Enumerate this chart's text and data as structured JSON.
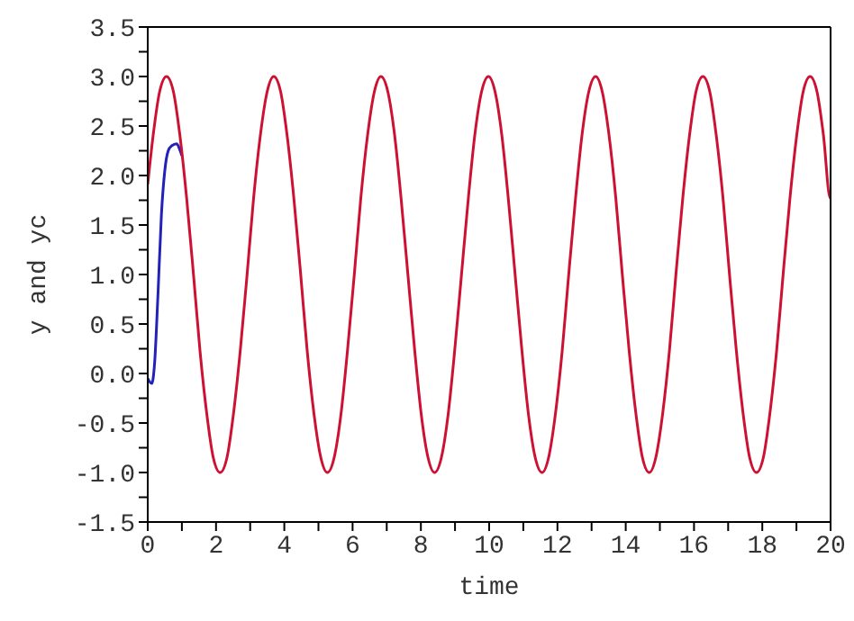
{
  "chart_data": {
    "type": "line",
    "xlabel": "time",
    "ylabel": "y and yc",
    "xlim": [
      0,
      20
    ],
    "ylim": [
      -1.5,
      3.5
    ],
    "xticks": [
      0,
      {
        "value": 1,
        "label": null
      },
      2,
      {
        "value": 3,
        "label": null
      },
      4,
      {
        "value": 5,
        "label": null
      },
      6,
      {
        "value": 7,
        "label": null
      },
      8,
      {
        "value": 9,
        "label": null
      },
      10,
      {
        "value": 11,
        "label": null
      },
      12,
      {
        "value": 13,
        "label": null
      },
      14,
      {
        "value": 15,
        "label": null
      },
      16,
      {
        "value": 17,
        "label": null
      },
      18,
      {
        "value": 19,
        "label": null
      },
      20
    ],
    "yticks": [
      {
        "value": -1.5,
        "label": "-1.5"
      },
      {
        "value": -1.25,
        "label": null
      },
      {
        "value": -1,
        "label": "-1.0"
      },
      {
        "value": -0.75,
        "label": null
      },
      {
        "value": -0.5,
        "label": "-0.5"
      },
      {
        "value": -0.25,
        "label": null
      },
      {
        "value": 0,
        "label": "0.0"
      },
      {
        "value": 0.25,
        "label": null
      },
      {
        "value": 0.5,
        "label": "0.5"
      },
      {
        "value": 0.75,
        "label": null
      },
      {
        "value": 1,
        "label": "1.0"
      },
      {
        "value": 1.25,
        "label": null
      },
      {
        "value": 1.5,
        "label": "1.5"
      },
      {
        "value": 1.75,
        "label": null
      },
      {
        "value": 2,
        "label": "2.0"
      },
      {
        "value": 2.25,
        "label": null
      },
      {
        "value": 2.5,
        "label": "2.5"
      },
      {
        "value": 2.75,
        "label": null
      },
      {
        "value": 3,
        "label": "3.0"
      },
      {
        "value": 3.25,
        "label": null
      },
      {
        "value": 3.5,
        "label": "3.5"
      }
    ],
    "legend": false,
    "marker": "none",
    "line_style": "solid",
    "series": [
      {
        "color": "#2222bb",
        "x": [
          0,
          0.05,
          0.12,
          0.2,
          0.3,
          0.4,
          0.5,
          0.6,
          0.7,
          0.85,
          0.95,
          1.0
        ],
        "values": [
          -0.05,
          -0.08,
          -0.1,
          0.1,
          0.8,
          1.6,
          2.05,
          2.25,
          2.3,
          2.32,
          2.25,
          2.2
        ]
      },
      {
        "color": "#cc1133",
        "x": [
          0,
          0.16,
          0.35,
          0.55,
          0.75,
          0.94,
          1.14,
          1.34,
          1.53,
          1.73,
          1.92,
          2.12,
          2.32,
          2.51,
          2.71,
          2.91,
          3.1,
          3.3,
          3.5,
          3.69,
          3.89,
          4.08,
          4.28,
          4.48,
          4.67,
          4.87,
          5.07,
          5.26,
          5.46,
          5.66,
          5.85,
          6.05,
          6.24,
          6.44,
          6.64,
          6.83,
          7.03,
          7.23,
          7.42,
          7.62,
          7.82,
          8.01,
          8.21,
          8.4,
          8.6,
          8.8,
          8.99,
          9.19,
          9.39,
          9.58,
          9.78,
          9.98,
          10.17,
          10.37,
          10.56,
          10.76,
          10.96,
          11.15,
          11.35,
          11.55,
          11.74,
          11.94,
          12.14,
          12.33,
          12.53,
          12.72,
          12.92,
          13.12,
          13.31,
          13.51,
          13.71,
          13.9,
          14.1,
          14.3,
          14.49,
          14.69,
          14.88,
          15.08,
          15.28,
          15.47,
          15.67,
          15.87,
          16.06,
          16.26,
          16.46,
          16.65,
          16.85,
          17.04,
          17.24,
          17.44,
          17.63,
          17.83,
          18.03,
          18.22,
          18.42,
          18.61,
          18.81,
          19.01,
          19.2,
          19.4,
          19.6,
          19.79,
          19.99,
          20
        ],
        "values": [
          1.91,
          2.41,
          2.85,
          3.0,
          2.85,
          2.41,
          1.77,
          1.0,
          0.23,
          -0.41,
          -0.85,
          -1.0,
          -0.85,
          -0.41,
          0.23,
          1.0,
          1.77,
          2.41,
          2.85,
          3.0,
          2.85,
          2.41,
          1.77,
          1.0,
          0.23,
          -0.41,
          -0.85,
          -1.0,
          -0.85,
          -0.41,
          0.23,
          1.0,
          1.77,
          2.41,
          2.85,
          3.0,
          2.85,
          2.41,
          1.77,
          1.0,
          0.23,
          -0.41,
          -0.85,
          -1.0,
          -0.85,
          -0.41,
          0.23,
          1.0,
          1.77,
          2.41,
          2.85,
          3.0,
          2.85,
          2.41,
          1.77,
          1.0,
          0.23,
          -0.41,
          -0.85,
          -1.0,
          -0.85,
          -0.41,
          0.23,
          1.0,
          1.77,
          2.41,
          2.85,
          3.0,
          2.85,
          2.41,
          1.77,
          1.0,
          0.23,
          -0.41,
          -0.85,
          -1.0,
          -0.85,
          -0.41,
          0.23,
          1.0,
          1.77,
          2.41,
          2.85,
          3.0,
          2.85,
          2.41,
          1.77,
          1.0,
          0.23,
          -0.41,
          -0.85,
          -1.0,
          -0.85,
          -0.41,
          0.23,
          1.0,
          1.77,
          2.41,
          2.85,
          3.0,
          2.85,
          2.41,
          1.77,
          1.8
        ]
      }
    ]
  }
}
